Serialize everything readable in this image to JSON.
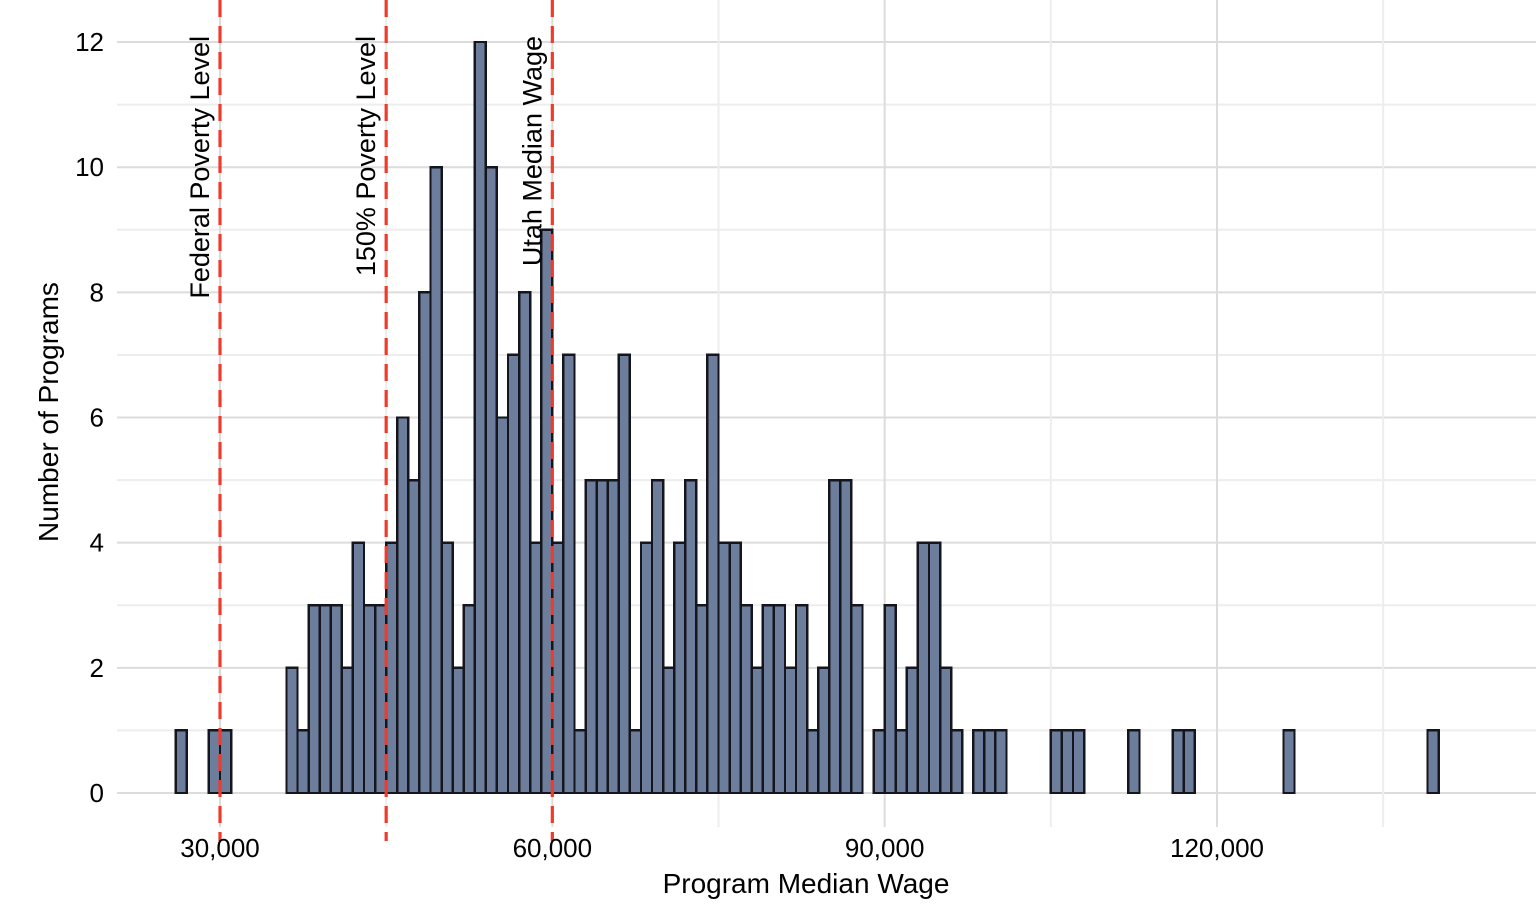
{
  "chart_data": {
    "type": "bar",
    "subtype": "histogram",
    "title": "",
    "xlabel": "Program Median Wage",
    "ylabel": "Number of Programs",
    "bin_width": 1000,
    "bins": [
      {
        "wage": 26000,
        "count": 1
      },
      {
        "wage": 29000,
        "count": 1
      },
      {
        "wage": 30000,
        "count": 1
      },
      {
        "wage": 36000,
        "count": 2
      },
      {
        "wage": 37000,
        "count": 1
      },
      {
        "wage": 38000,
        "count": 3
      },
      {
        "wage": 39000,
        "count": 3
      },
      {
        "wage": 40000,
        "count": 3
      },
      {
        "wage": 41000,
        "count": 2
      },
      {
        "wage": 42000,
        "count": 4
      },
      {
        "wage": 43000,
        "count": 3
      },
      {
        "wage": 44000,
        "count": 3
      },
      {
        "wage": 45000,
        "count": 4
      },
      {
        "wage": 46000,
        "count": 6
      },
      {
        "wage": 47000,
        "count": 5
      },
      {
        "wage": 48000,
        "count": 8
      },
      {
        "wage": 49000,
        "count": 10
      },
      {
        "wage": 50000,
        "count": 4
      },
      {
        "wage": 51000,
        "count": 2
      },
      {
        "wage": 52000,
        "count": 3
      },
      {
        "wage": 53000,
        "count": 12
      },
      {
        "wage": 54000,
        "count": 10
      },
      {
        "wage": 55000,
        "count": 6
      },
      {
        "wage": 56000,
        "count": 7
      },
      {
        "wage": 57000,
        "count": 8
      },
      {
        "wage": 58000,
        "count": 4
      },
      {
        "wage": 59000,
        "count": 9
      },
      {
        "wage": 60000,
        "count": 4
      },
      {
        "wage": 61000,
        "count": 7
      },
      {
        "wage": 62000,
        "count": 1
      },
      {
        "wage": 63000,
        "count": 5
      },
      {
        "wage": 64000,
        "count": 5
      },
      {
        "wage": 65000,
        "count": 5
      },
      {
        "wage": 66000,
        "count": 7
      },
      {
        "wage": 67000,
        "count": 1
      },
      {
        "wage": 68000,
        "count": 4
      },
      {
        "wage": 69000,
        "count": 5
      },
      {
        "wage": 70000,
        "count": 2
      },
      {
        "wage": 71000,
        "count": 4
      },
      {
        "wage": 72000,
        "count": 5
      },
      {
        "wage": 73000,
        "count": 3
      },
      {
        "wage": 74000,
        "count": 7
      },
      {
        "wage": 75000,
        "count": 4
      },
      {
        "wage": 76000,
        "count": 4
      },
      {
        "wage": 77000,
        "count": 3
      },
      {
        "wage": 78000,
        "count": 2
      },
      {
        "wage": 79000,
        "count": 3
      },
      {
        "wage": 80000,
        "count": 3
      },
      {
        "wage": 81000,
        "count": 2
      },
      {
        "wage": 82000,
        "count": 3
      },
      {
        "wage": 83000,
        "count": 1
      },
      {
        "wage": 84000,
        "count": 2
      },
      {
        "wage": 85000,
        "count": 5
      },
      {
        "wage": 86000,
        "count": 5
      },
      {
        "wage": 87000,
        "count": 3
      },
      {
        "wage": 89000,
        "count": 1
      },
      {
        "wage": 90000,
        "count": 3
      },
      {
        "wage": 91000,
        "count": 1
      },
      {
        "wage": 92000,
        "count": 2
      },
      {
        "wage": 93000,
        "count": 4
      },
      {
        "wage": 94000,
        "count": 4
      },
      {
        "wage": 95000,
        "count": 2
      },
      {
        "wage": 96000,
        "count": 1
      },
      {
        "wage": 98000,
        "count": 1
      },
      {
        "wage": 99000,
        "count": 1
      },
      {
        "wage": 100000,
        "count": 1
      },
      {
        "wage": 105000,
        "count": 1
      },
      {
        "wage": 106000,
        "count": 1
      },
      {
        "wage": 107000,
        "count": 1
      },
      {
        "wage": 112000,
        "count": 1
      },
      {
        "wage": 116000,
        "count": 1
      },
      {
        "wage": 117000,
        "count": 1
      },
      {
        "wage": 126000,
        "count": 1
      },
      {
        "wage": 139000,
        "count": 1
      }
    ],
    "reference_lines": [
      {
        "label": "Federal Poverty Level",
        "value": 30000
      },
      {
        "label": "150% Poverty Level",
        "value": 45000
      },
      {
        "label": "Utah Median Wage",
        "value": 60000
      }
    ],
    "x_ticks": [
      {
        "value": 30000,
        "label": "30,000"
      },
      {
        "value": 60000,
        "label": "60,000"
      },
      {
        "value": 90000,
        "label": "90,000"
      },
      {
        "value": 120000,
        "label": "120,000"
      }
    ],
    "x_minor_gridlines": [
      45000,
      75000,
      105000,
      135000
    ],
    "y_ticks": [
      {
        "value": 0,
        "label": "0"
      },
      {
        "value": 2,
        "label": "2"
      },
      {
        "value": 4,
        "label": "4"
      },
      {
        "value": 6,
        "label": "6"
      },
      {
        "value": 8,
        "label": "8"
      },
      {
        "value": 10,
        "label": "10"
      },
      {
        "value": 12,
        "label": "12"
      }
    ],
    "y_minor_gridlines": [
      1,
      3,
      5,
      7,
      9,
      11
    ],
    "ylim": [
      0,
      12
    ],
    "grid": true,
    "legend": false,
    "colors": {
      "bar_fill": "#6d7d9c",
      "bar_border": "#15151e",
      "reference_line": "#ef3b2c",
      "grid_major": "#dcdcdc",
      "grid_minor": "#ededed",
      "text": "#000000",
      "background": "#ffffff"
    }
  }
}
